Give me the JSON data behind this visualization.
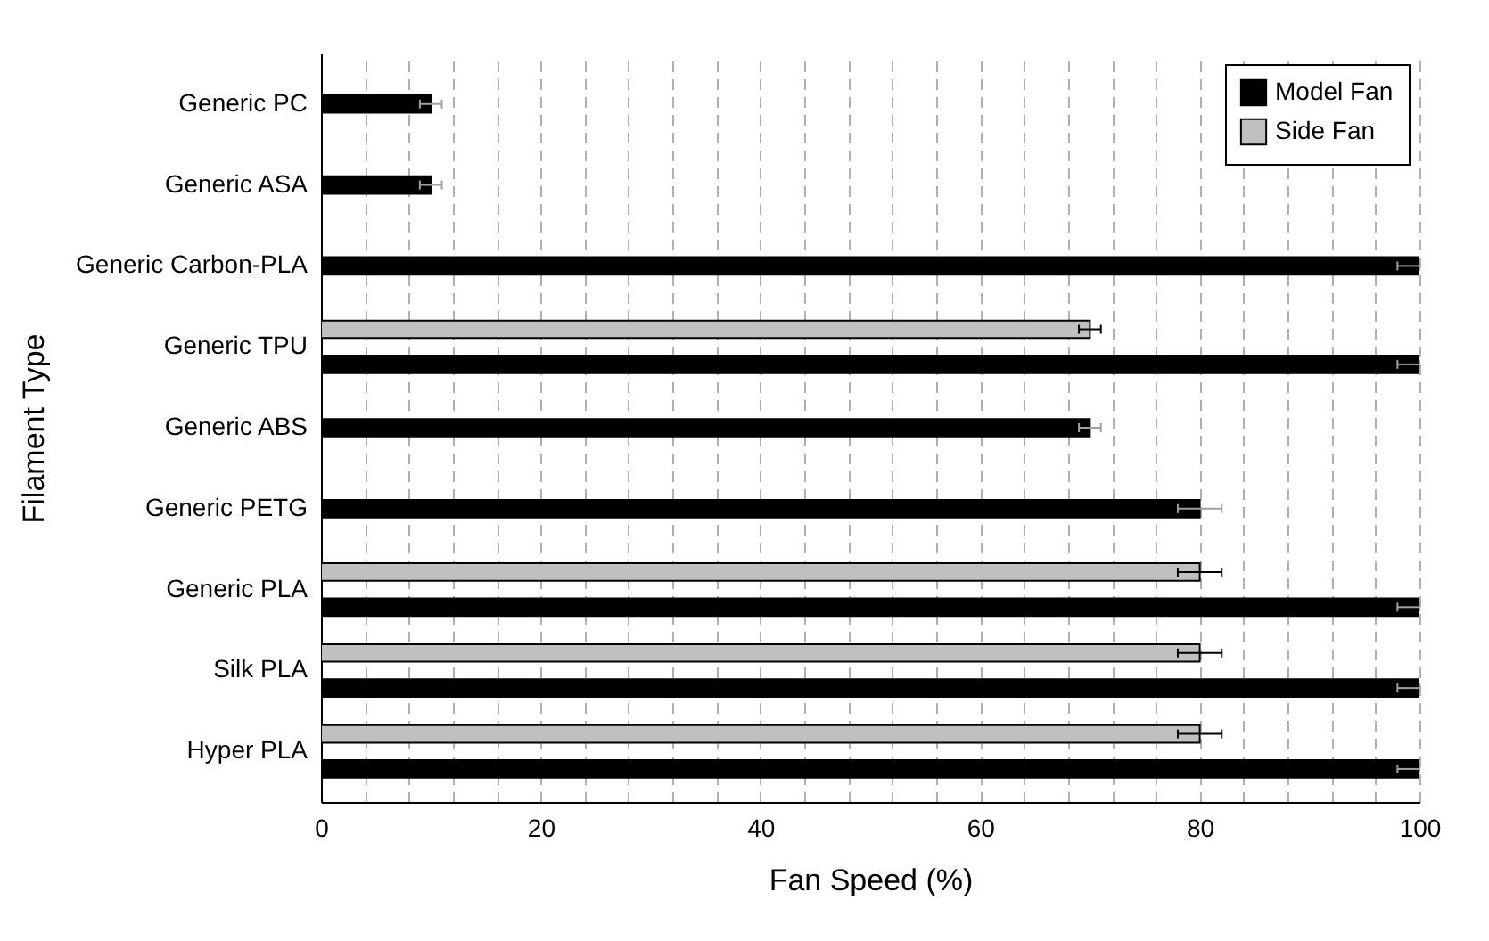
{
  "chart_data": {
    "type": "bar",
    "orientation": "horizontal",
    "xlabel": "Fan Speed (%)",
    "ylabel": "Filament Type",
    "categories": [
      "Generic PC",
      "Generic ASA",
      "Generic Carbon-PLA",
      "Generic TPU",
      "Generic ABS",
      "Generic PETG",
      "Generic PLA",
      "Silk PLA",
      "Hyper PLA"
    ],
    "series": [
      {
        "name": "Model Fan",
        "color": "#000000",
        "values": [
          10,
          10,
          100,
          100,
          70,
          80,
          100,
          100,
          100
        ],
        "errors": [
          1,
          1,
          [
            98,
            100
          ],
          [
            98,
            100
          ],
          1,
          2,
          [
            98,
            100
          ],
          [
            98,
            100
          ],
          [
            98,
            100
          ]
        ]
      },
      {
        "name": "Side Fan",
        "color": "#c0c0c0",
        "values": [
          null,
          null,
          null,
          70,
          null,
          null,
          80,
          80,
          80
        ],
        "errors": [
          null,
          null,
          null,
          1,
          null,
          null,
          2,
          2,
          2
        ]
      }
    ],
    "xlim": [
      0,
      100
    ],
    "xticks": [
      0,
      {
        "value": 4,
        "label": null
      },
      {
        "value": 8,
        "label": null
      },
      {
        "value": 12,
        "label": null
      },
      {
        "value": 16,
        "label": null
      },
      20,
      {
        "value": 24,
        "label": null
      },
      {
        "value": 28,
        "label": null
      },
      {
        "value": 32,
        "label": null
      },
      {
        "value": 36,
        "label": null
      },
      40,
      {
        "value": 44,
        "label": null
      },
      {
        "value": 48,
        "label": null
      },
      {
        "value": 52,
        "label": null
      },
      {
        "value": 56,
        "label": null
      },
      60,
      {
        "value": 64,
        "label": null
      },
      {
        "value": 68,
        "label": null
      },
      {
        "value": 72,
        "label": null
      },
      {
        "value": 76,
        "label": null
      },
      80,
      {
        "value": 84,
        "label": null
      },
      {
        "value": 88,
        "label": null
      },
      {
        "value": 92,
        "label": null
      },
      {
        "value": 96,
        "label": null
      },
      100
    ],
    "grid": "x",
    "legend": "top right"
  }
}
